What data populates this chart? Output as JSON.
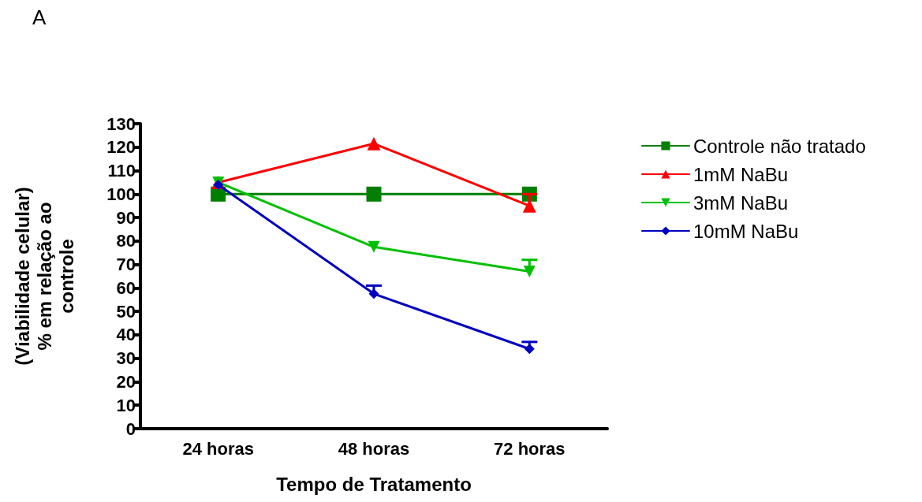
{
  "chart_data": {
    "type": "line",
    "title": "A",
    "xlabel": "Tempo de Tratamento",
    "ylabel": "(Viabilidade celular)\n% em relação ao\ncontrole",
    "categories": [
      "24 horas",
      "48 horas",
      "72 horas"
    ],
    "series": [
      {
        "name": "Controle não tratado",
        "color": "#007f00",
        "marker": "square",
        "values": [
          100,
          100,
          100
        ]
      },
      {
        "name": "1mM NaBu",
        "color": "#ff0000",
        "marker": "triangle",
        "values": [
          105,
          121.5,
          95
        ],
        "errors": [
          null,
          null,
          [
            95,
            100
          ]
        ]
      },
      {
        "name": "3mM NaBu",
        "color": "#00c000",
        "marker": "triangle-down",
        "values": [
          105,
          77.5,
          67
        ],
        "errors": [
          null,
          null,
          [
            67,
            72
          ]
        ]
      },
      {
        "name": "10mM NaBu",
        "color": "#0000c0",
        "marker": "diamond",
        "values": [
          104,
          57.5,
          34
        ],
        "errors": [
          null,
          [
            57.5,
            61
          ],
          [
            34,
            37
          ]
        ]
      }
    ],
    "ylim": [
      0,
      130
    ],
    "yticks": [
      0,
      10,
      20,
      30,
      40,
      50,
      60,
      70,
      80,
      90,
      100,
      110,
      120,
      130
    ],
    "grid": false,
    "legend": "right",
    "line_style": "solid"
  }
}
